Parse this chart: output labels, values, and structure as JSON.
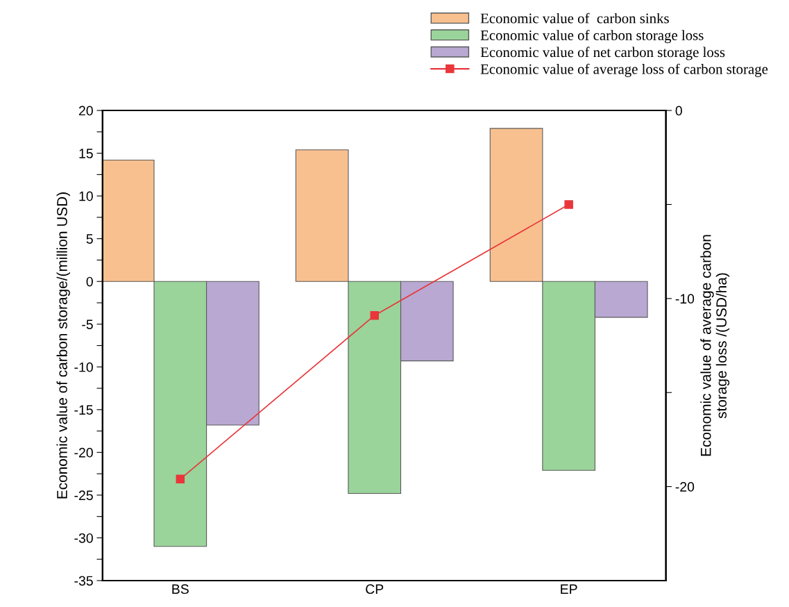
{
  "chart_data": {
    "type": "bar",
    "categories": [
      "BS",
      "CP",
      "EP"
    ],
    "ylabel": "Economic value of carbon storage/(million USD)",
    "y2label": "Economic value of average carbon\nstorage loss /(USD/ha)",
    "series": [
      {
        "name": "Economic value of  carbon sinks",
        "color": "#f9c08f",
        "values": [
          14.2,
          15.4,
          17.9
        ]
      },
      {
        "name": "Economic value of carbon storage loss",
        "color": "#9ad49a",
        "values": [
          -31.0,
          -24.8,
          -22.1
        ]
      },
      {
        "name": "Economic value of net carbon storage loss",
        "color": "#b9a8d2",
        "values": [
          -16.8,
          -9.3,
          -4.2
        ]
      },
      {
        "name": "Economic value of average loss of carbon storage",
        "type": "line",
        "axis": "y2",
        "color": "#e8363a",
        "values": [
          -19.6,
          -10.9,
          -5.0
        ]
      }
    ],
    "ylim": [
      -35,
      20
    ],
    "yticks": [
      -35,
      {
        "value": -32.5,
        "label": null
      },
      -30,
      {
        "value": -27.5,
        "label": null
      },
      -25,
      {
        "value": -22.5,
        "label": null
      },
      -20,
      {
        "value": -17.5,
        "label": null
      },
      -15,
      {
        "value": -12.5,
        "label": null
      },
      -10,
      {
        "value": -7.5,
        "label": null
      },
      -5,
      {
        "value": -2.5,
        "label": null
      },
      0,
      {
        "value": 2.5,
        "label": null
      },
      5,
      {
        "value": 7.5,
        "label": null
      },
      10,
      {
        "value": 12.5,
        "label": null
      },
      15,
      {
        "value": 17.5,
        "label": null
      },
      20
    ],
    "y2lim": [
      -25,
      0
    ],
    "y2ticks": [
      -20,
      {
        "value": -15,
        "label": null
      },
      -10,
      {
        "value": -5,
        "label": null
      },
      0
    ],
    "marker": "square",
    "line_style": "solid",
    "legend": "top right",
    "grid": false
  }
}
